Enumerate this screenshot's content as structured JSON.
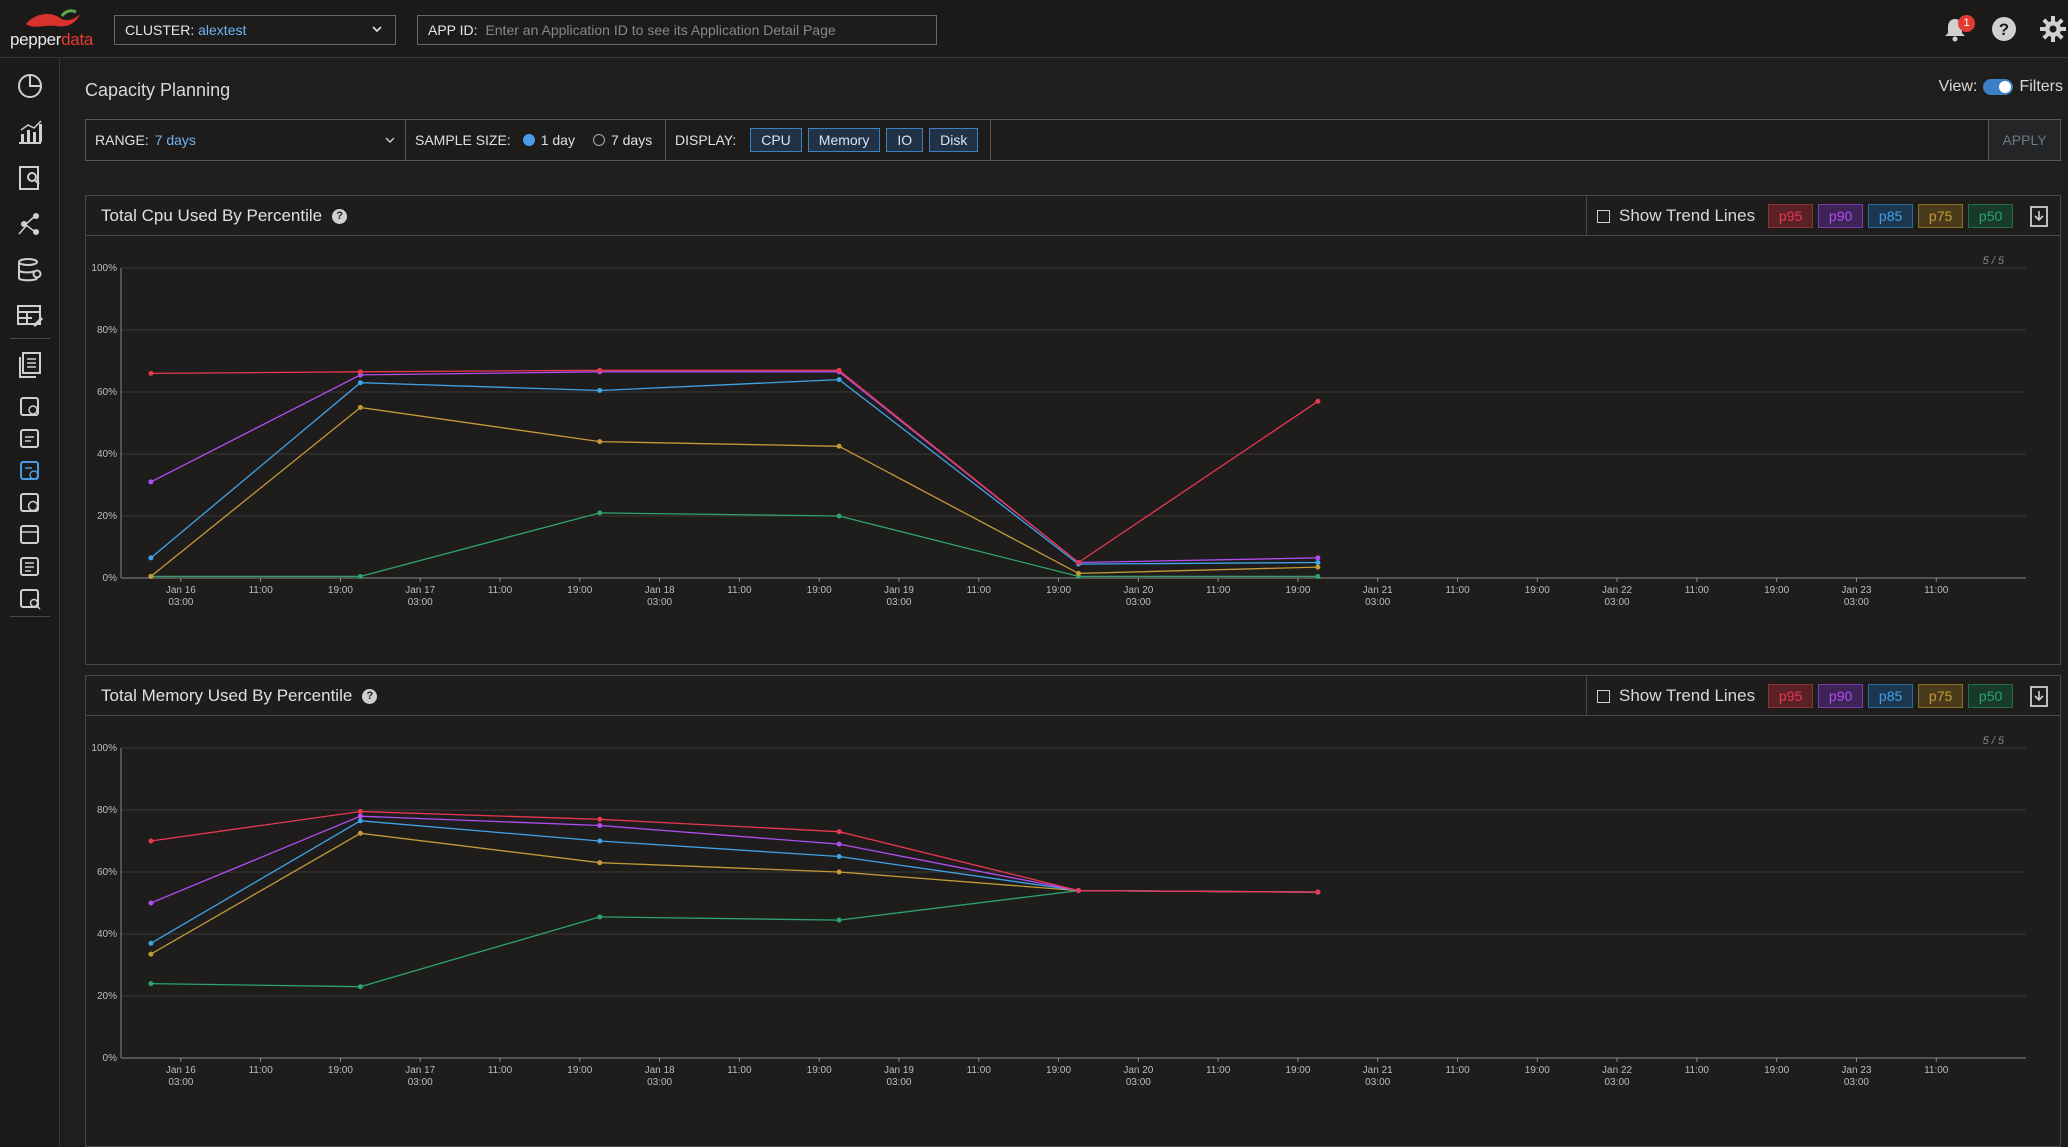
{
  "app": {
    "logo_text_1": "pepper",
    "logo_text_2": "data",
    "notification_count": "1"
  },
  "header": {
    "cluster_label": "CLUSTER:",
    "cluster_value": "alextest",
    "appid_label": "APP ID:",
    "appid_placeholder": "Enter an Application ID to see its Application Detail Page"
  },
  "page": {
    "title": "Capacity Planning",
    "view_label": "View:",
    "filters_label": "Filters"
  },
  "filters": {
    "range_label": "RANGE:",
    "range_value": "7 days",
    "sample_label": "SAMPLE SIZE:",
    "sample_options": [
      "1 day",
      "7 days"
    ],
    "sample_selected": "1 day",
    "display_label": "DISPLAY:",
    "display_buttons": [
      "CPU",
      "Memory",
      "IO",
      "Disk"
    ],
    "apply_label": "APPLY"
  },
  "legend": {
    "show_trend_lines": "Show Trend Lines",
    "percentiles": [
      {
        "label": "p95",
        "color": "#e8384f",
        "bg": "#5a2226"
      },
      {
        "label": "p90",
        "color": "#b04ef0",
        "bg": "#3e2356"
      },
      {
        "label": "p85",
        "color": "#3fa3e8",
        "bg": "#1d3650"
      },
      {
        "label": "p75",
        "color": "#c49a38",
        "bg": "#4a3c1a"
      },
      {
        "label": "p50",
        "color": "#2ea36e",
        "bg": "#173a2a"
      }
    ]
  },
  "panels": {
    "cpu": {
      "title": "Total Cpu Used By Percentile",
      "counter": "5 / 5"
    },
    "memory": {
      "title": "Total Memory Used By Percentile",
      "counter": "5 / 5"
    }
  },
  "chart_data": [
    {
      "type": "line",
      "title": "Total Cpu Used By Percentile",
      "ylim": [
        0,
        100
      ],
      "y_ticks": [
        "0%",
        "20%",
        "40%",
        "60%",
        "80%",
        "100%"
      ],
      "x_tick_labels": [
        [
          "Jan 16",
          "03:00"
        ],
        [
          "11:00"
        ],
        [
          "19:00"
        ],
        [
          "Jan 17",
          "03:00"
        ],
        [
          "11:00"
        ],
        [
          "19:00"
        ],
        [
          "Jan 18",
          "03:00"
        ],
        [
          "11:00"
        ],
        [
          "19:00"
        ],
        [
          "Jan 19",
          "03:00"
        ],
        [
          "11:00"
        ],
        [
          "19:00"
        ],
        [
          "Jan 20",
          "03:00"
        ],
        [
          "11:00"
        ],
        [
          "19:00"
        ],
        [
          "Jan 21",
          "03:00"
        ],
        [
          "11:00"
        ],
        [
          "19:00"
        ],
        [
          "Jan 22",
          "03:00"
        ],
        [
          "11:00"
        ],
        [
          "19:00"
        ],
        [
          "Jan 23",
          "03:00"
        ],
        [
          "11:00"
        ]
      ],
      "x": [
        "Jan 16 00:00",
        "Jan 16 21:00",
        "Jan 17 21:00",
        "Jan 18 21:00",
        "Jan 19 21:00",
        "Jan 20 21:00"
      ],
      "series": [
        {
          "name": "p95",
          "color": "#e8384f",
          "values": [
            66,
            66.5,
            67,
            67,
            5,
            57
          ]
        },
        {
          "name": "p90",
          "color": "#b04ef0",
          "values": [
            31,
            65.5,
            66.5,
            66.5,
            5,
            6.5
          ]
        },
        {
          "name": "p85",
          "color": "#3fa3e8",
          "values": [
            6.5,
            63,
            60.5,
            64,
            4.5,
            5
          ]
        },
        {
          "name": "p75",
          "color": "#c49a38",
          "values": [
            0.5,
            55,
            44,
            42.5,
            1.5,
            3.5
          ]
        },
        {
          "name": "p50",
          "color": "#2ea36e",
          "values": [
            0.5,
            0.5,
            21,
            20,
            0.5,
            0.5
          ]
        }
      ]
    },
    {
      "type": "line",
      "title": "Total Memory Used By Percentile",
      "ylim": [
        0,
        100
      ],
      "y_ticks": [
        "0%",
        "20%",
        "40%",
        "60%",
        "80%",
        "100%"
      ],
      "x_tick_labels": [
        [
          "Jan 16",
          "03:00"
        ],
        [
          "11:00"
        ],
        [
          "19:00"
        ],
        [
          "Jan 17",
          "03:00"
        ],
        [
          "11:00"
        ],
        [
          "19:00"
        ],
        [
          "Jan 18",
          "03:00"
        ],
        [
          "11:00"
        ],
        [
          "19:00"
        ],
        [
          "Jan 19",
          "03:00"
        ],
        [
          "11:00"
        ],
        [
          "19:00"
        ],
        [
          "Jan 20",
          "03:00"
        ],
        [
          "11:00"
        ],
        [
          "19:00"
        ],
        [
          "Jan 21",
          "03:00"
        ],
        [
          "11:00"
        ],
        [
          "19:00"
        ],
        [
          "Jan 22",
          "03:00"
        ],
        [
          "11:00"
        ],
        [
          "19:00"
        ],
        [
          "Jan 23",
          "03:00"
        ],
        [
          "11:00"
        ]
      ],
      "x": [
        "Jan 16 00:00",
        "Jan 16 21:00",
        "Jan 17 21:00",
        "Jan 18 21:00",
        "Jan 19 21:00",
        "Jan 20 21:00"
      ],
      "series": [
        {
          "name": "p95",
          "color": "#e8384f",
          "values": [
            70,
            79.5,
            77,
            73,
            54,
            53.5
          ]
        },
        {
          "name": "p90",
          "color": "#b04ef0",
          "values": [
            50,
            78,
            75,
            69,
            54,
            53.5
          ]
        },
        {
          "name": "p85",
          "color": "#3fa3e8",
          "values": [
            37,
            76.5,
            70,
            65,
            54,
            53.5
          ]
        },
        {
          "name": "p75",
          "color": "#c49a38",
          "values": [
            33.5,
            72.5,
            63,
            60,
            54,
            53.5
          ]
        },
        {
          "name": "p50",
          "color": "#2ea36e",
          "values": [
            24,
            23,
            45.5,
            44.5,
            54,
            53.5
          ]
        }
      ]
    }
  ]
}
